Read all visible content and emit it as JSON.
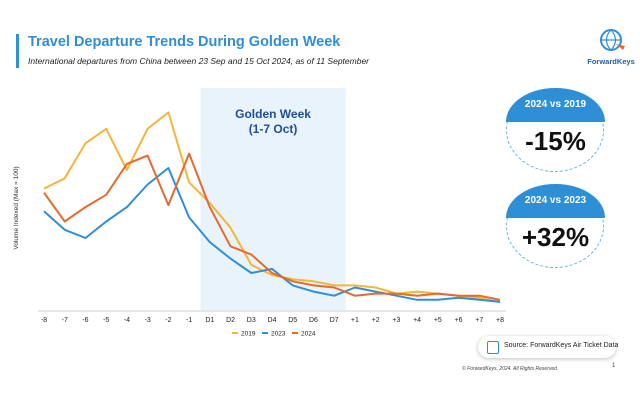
{
  "header": {
    "title": "Travel Departure Trends During Golden Week",
    "subtitle": "International departures from China between 23 Sep and 15 Oct 2024, as of 11 September"
  },
  "logo": {
    "text": "ForwardKeys",
    "icon": "globe-logo-icon"
  },
  "kpis": [
    {
      "label": "2024 vs 2019",
      "value": "-15%"
    },
    {
      "label": "2024 vs 2023",
      "value": "+32%"
    }
  ],
  "source": {
    "text": "Source: ForwardKeys Air Ticket Data",
    "icon": "document-search-icon"
  },
  "footer": {
    "copyright": "© ForwardKeys, 2024. All Rights Reserved.",
    "page": "1"
  },
  "colors": {
    "s2019": "#f2b63a",
    "s2023": "#2f8fd6",
    "s2024": "#e46a2e",
    "highlight": "#e8f3fb",
    "accent": "#2f8fd6"
  },
  "chart_data": {
    "type": "line",
    "ylabel": "Volume Indexed (Max = 100)",
    "xlabel": "",
    "ylim": [
      0,
      100
    ],
    "categories": [
      "-8",
      "-7",
      "-6",
      "-5",
      "-4",
      "-3",
      "-2",
      "-1",
      "D1",
      "D2",
      "D3",
      "D4",
      "D5",
      "D6",
      "D7",
      "+1",
      "+2",
      "+3",
      "+4",
      "+5",
      "+6",
      "+7",
      "+8"
    ],
    "highlight": {
      "from": "-1",
      "to": "D7",
      "label_line1": "Golden Week",
      "label_line2": "(1-7 Oct)"
    },
    "legend_position": "bottom",
    "series": [
      {
        "name": "2019",
        "values": [
          57,
          62,
          79,
          86,
          66,
          86,
          94,
          60,
          50,
          38,
          20,
          15,
          13,
          12,
          10,
          10,
          9,
          6,
          7,
          6,
          5,
          4,
          2
        ]
      },
      {
        "name": "2023",
        "values": [
          46,
          37,
          33,
          41,
          48,
          59,
          67,
          43,
          31,
          23,
          16,
          18,
          10,
          7,
          5,
          9,
          7,
          5,
          3,
          3,
          4,
          3,
          2
        ]
      },
      {
        "name": "2024",
        "values": [
          55,
          41,
          48,
          54,
          69,
          73,
          49,
          74,
          48,
          29,
          25,
          16,
          12,
          10,
          9,
          5,
          6,
          6,
          5,
          6,
          5,
          5,
          3
        ]
      }
    ]
  }
}
